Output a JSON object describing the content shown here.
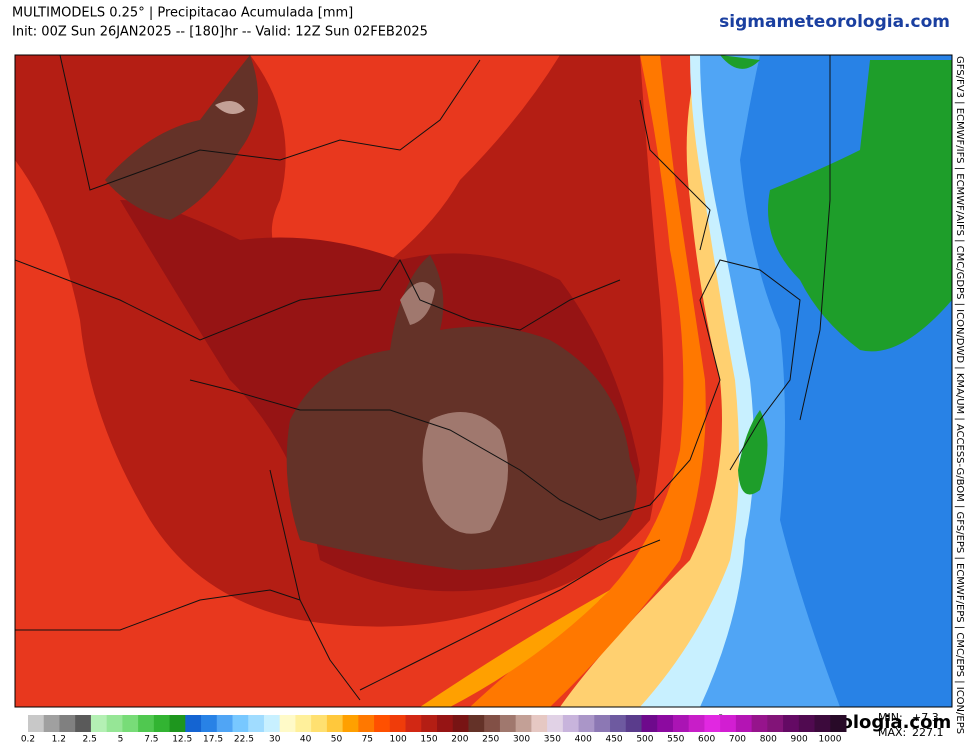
{
  "header": {
    "title": "MULTIMODELS 0.25° | Precipitacao Acumulada [mm]",
    "subtitle": "Init: 00Z Sun 26JAN2025 -- [180]hr -- Valid: 12Z Sun 02FEB2025",
    "site": "sigmameteorologia.com"
  },
  "map": {
    "watermark": "sigmameteorologia.com",
    "models": "GFS/FV3 | ECMWF/IFS | ECMWF/AIFS | CMC/GDPS | ICON/DWD | KMA/UM | ACCESS-G/BOM | GFS/EPS | ECMWF/EPS | CMC/EPS | ICON/EPS"
  },
  "colorbar": {
    "labels": [
      "0.2",
      "1.2",
      "2.5",
      "5",
      "7.5",
      "12.5",
      "17.5",
      "22.5",
      "30",
      "40",
      "50",
      "75",
      "100",
      "150",
      "200",
      "250",
      "300",
      "350",
      "400",
      "450",
      "500",
      "550",
      "600",
      "700",
      "800",
      "900",
      "1000"
    ]
  },
  "stats": {
    "min_label": "MIN:",
    "min": "+7.3",
    "max_label": "MAX:",
    "max": "227.1"
  }
}
